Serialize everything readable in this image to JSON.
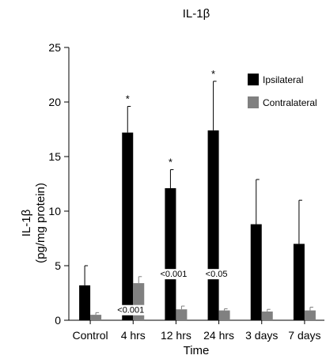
{
  "chart_data": {
    "type": "bar",
    "title": "IL-1β",
    "xlabel": "Time",
    "ylabel_lines": [
      "IL-1β",
      "(pg/mg protein)"
    ],
    "ylim": [
      0,
      25
    ],
    "yticks": [
      0,
      5,
      10,
      15,
      20,
      25
    ],
    "categories": [
      "Control",
      "4 hrs",
      "12 hrs",
      "24 hrs",
      "3 days",
      "7 days"
    ],
    "series": [
      {
        "name": "Ipsilateral",
        "color": "#000000",
        "values": [
          3.2,
          17.2,
          12.1,
          17.4,
          8.8,
          7.0
        ],
        "errors": [
          1.8,
          2.4,
          1.7,
          4.5,
          4.1,
          4.0
        ],
        "significance": [
          "",
          "*",
          "*",
          "*",
          "",
          ""
        ]
      },
      {
        "name": "Contralateral",
        "color": "#808080",
        "values": [
          0.5,
          3.4,
          1.0,
          0.9,
          0.8,
          0.9
        ],
        "errors": [
          0.2,
          0.6,
          0.3,
          0.15,
          0.2,
          0.3
        ],
        "significance": [
          "",
          "",
          "",
          "",
          "",
          ""
        ]
      }
    ],
    "annotations": [
      {
        "category": "4 hrs",
        "text": "<0.001",
        "y": 0.6
      },
      {
        "category": "12 hrs",
        "text": "<0.001",
        "y": 3.9
      },
      {
        "category": "24 hrs",
        "text": "<0.05",
        "y": 3.9
      }
    ],
    "legend": {
      "position": "top-right"
    },
    "grid": false
  }
}
